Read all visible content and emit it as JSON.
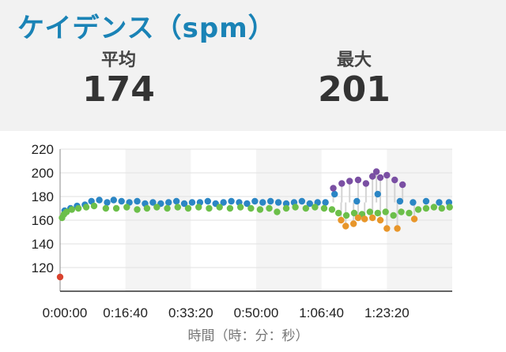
{
  "header": {
    "title": "ケイデンス（spm）"
  },
  "stats": {
    "average": {
      "label": "平均",
      "value": "174"
    },
    "max": {
      "label": "最大",
      "value": "201"
    }
  },
  "chart_data": {
    "type": "scatter",
    "xlabel": "時間（時：分：秒）",
    "ylabel": "",
    "x_ticks": [
      "0:00:00",
      "0:16:40",
      "0:33:20",
      "0:50:00",
      "1:06:40",
      "1:23:20"
    ],
    "x_tick_seconds": [
      0,
      1000,
      2000,
      3000,
      4000,
      5000
    ],
    "y_ticks": [
      120,
      140,
      160,
      180,
      200,
      220
    ],
    "xlim_seconds": [
      0,
      6000
    ],
    "ylim": [
      100,
      220
    ],
    "grid": true,
    "colors": {
      "blue": "#2b86c5",
      "green": "#6cbf4a",
      "purple": "#7a4fa3",
      "orange": "#e8962a",
      "red": "#d9432f",
      "stem": "#d4d4d4",
      "band": "#f4f4f4"
    },
    "series": [
      {
        "color": "blue",
        "points": [
          [
            70,
            168
          ],
          [
            160,
            170
          ],
          [
            260,
            172
          ],
          [
            380,
            173
          ],
          [
            480,
            176
          ],
          [
            600,
            177
          ],
          [
            720,
            175
          ],
          [
            820,
            177
          ],
          [
            940,
            176
          ],
          [
            1060,
            175
          ],
          [
            1180,
            176
          ],
          [
            1300,
            174
          ],
          [
            1420,
            175
          ],
          [
            1540,
            174
          ],
          [
            1660,
            175
          ],
          [
            1780,
            176
          ],
          [
            1900,
            174
          ],
          [
            2020,
            175
          ],
          [
            2140,
            175
          ],
          [
            2260,
            176
          ],
          [
            2380,
            174
          ],
          [
            2500,
            175
          ],
          [
            2620,
            176
          ],
          [
            2740,
            175
          ],
          [
            2860,
            174
          ],
          [
            2980,
            176
          ],
          [
            3100,
            175
          ],
          [
            3220,
            176
          ],
          [
            3340,
            175
          ],
          [
            3460,
            174
          ],
          [
            3580,
            175
          ],
          [
            3700,
            176
          ],
          [
            3820,
            174
          ],
          [
            3940,
            175
          ],
          [
            4060,
            175
          ],
          [
            4200,
            182
          ],
          [
            4540,
            176
          ],
          [
            4860,
            182
          ],
          [
            5200,
            176
          ],
          [
            5400,
            175
          ],
          [
            5600,
            176
          ],
          [
            5800,
            175
          ],
          [
            5950,
            175
          ]
        ]
      },
      {
        "color": "green",
        "points": [
          [
            30,
            162
          ],
          [
            60,
            165
          ],
          [
            100,
            167
          ],
          [
            180,
            169
          ],
          [
            280,
            170
          ],
          [
            400,
            171
          ],
          [
            520,
            172
          ],
          [
            700,
            170
          ],
          [
            860,
            170
          ],
          [
            1020,
            171
          ],
          [
            1180,
            169
          ],
          [
            1330,
            170
          ],
          [
            1480,
            171
          ],
          [
            1640,
            170
          ],
          [
            1800,
            171
          ],
          [
            1960,
            170
          ],
          [
            2120,
            171
          ],
          [
            2280,
            170
          ],
          [
            2440,
            171
          ],
          [
            2600,
            170
          ],
          [
            2760,
            171
          ],
          [
            2920,
            170
          ],
          [
            3060,
            169
          ],
          [
            3200,
            170
          ],
          [
            3320,
            167
          ],
          [
            3460,
            170
          ],
          [
            3600,
            171
          ],
          [
            3760,
            170
          ],
          [
            3900,
            171
          ],
          [
            4040,
            170
          ],
          [
            4160,
            169
          ],
          [
            4260,
            166
          ],
          [
            4380,
            164
          ],
          [
            4500,
            166
          ],
          [
            4620,
            165
          ],
          [
            4740,
            167
          ],
          [
            4860,
            166
          ],
          [
            4980,
            167
          ],
          [
            5100,
            164
          ],
          [
            5220,
            167
          ],
          [
            5340,
            166
          ],
          [
            5480,
            169
          ],
          [
            5600,
            170
          ],
          [
            5720,
            171
          ],
          [
            5840,
            170
          ],
          [
            5960,
            171
          ]
        ]
      },
      {
        "color": "purple",
        "points": [
          [
            4180,
            187
          ],
          [
            4310,
            191
          ],
          [
            4430,
            193
          ],
          [
            4560,
            194
          ],
          [
            4680,
            191
          ],
          [
            4780,
            197
          ],
          [
            4840,
            201
          ],
          [
            4900,
            196
          ],
          [
            5000,
            198
          ],
          [
            5120,
            194
          ],
          [
            5240,
            190
          ]
        ]
      },
      {
        "color": "orange",
        "points": [
          [
            4300,
            160
          ],
          [
            4370,
            155
          ],
          [
            4490,
            157
          ],
          [
            4560,
            162
          ],
          [
            4660,
            161
          ],
          [
            4780,
            162
          ],
          [
            4900,
            160
          ],
          [
            5000,
            153
          ],
          [
            5160,
            153
          ],
          [
            5420,
            161
          ]
        ]
      },
      {
        "color": "red",
        "points": [
          [
            0,
            112
          ]
        ]
      }
    ]
  }
}
